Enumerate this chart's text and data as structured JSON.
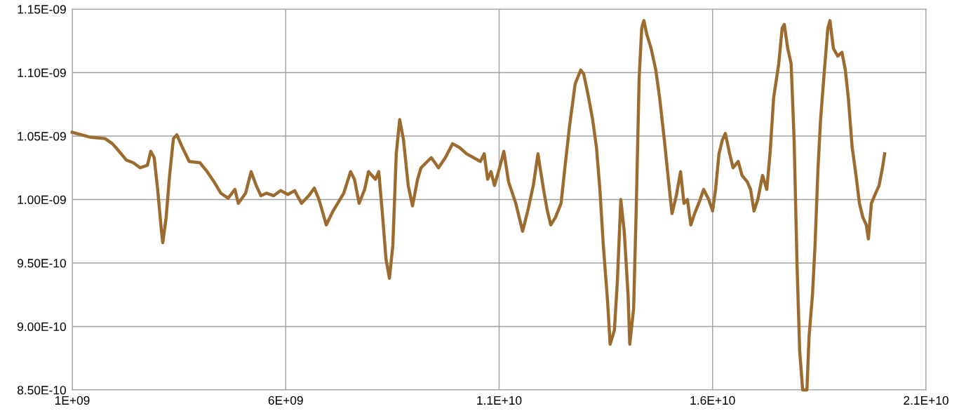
{
  "chart_data": {
    "type": "line",
    "grid": true,
    "marker": "none",
    "line_style": "solid",
    "xlim": [
      1000000000.0,
      21000000000.0
    ],
    "xticks": [
      {
        "value": 1000000000.0,
        "label": "1E+09"
      },
      {
        "value": 6000000000.0,
        "label": "6E+09"
      },
      {
        "value": 11000000000.0,
        "label": "1.1E+10"
      },
      {
        "value": 16000000000.0,
        "label": "1.6E+10"
      },
      {
        "value": 21000000000.0,
        "label": "2.1E+10"
      }
    ],
    "ylim": [
      8.5e-10,
      1.15e-09
    ],
    "yticks": [
      {
        "value": 8.5e-10,
        "label": "8.50E-10"
      },
      {
        "value": 9e-10,
        "label": "9.00E-10"
      },
      {
        "value": 9.5e-10,
        "label": "9.50E-10"
      },
      {
        "value": 1e-09,
        "label": "1.00E-09"
      },
      {
        "value": 1.05e-09,
        "label": "1.05E-09"
      },
      {
        "value": 1.1e-09,
        "label": "1.10E-09"
      },
      {
        "value": 1.15e-09,
        "label": "1.15E-09"
      }
    ],
    "series": [
      {
        "color": "#9c6b30",
        "x": [
          1000000000.0,
          1440000000.0,
          1770000000.0,
          1940000000.0,
          2020000000.0,
          2270000000.0,
          2430000000.0,
          2590000000.0,
          2760000000.0,
          2840000000.0,
          2920000000.0,
          3000000000.0,
          3090000000.0,
          3120000000.0,
          3200000000.0,
          3280000000.0,
          3370000000.0,
          3450000000.0,
          3580000000.0,
          3740000000.0,
          3990000000.0,
          4160000000.0,
          4320000000.0,
          4480000000.0,
          4650000000.0,
          4810000000.0,
          4890000000.0,
          5060000000.0,
          5190000000.0,
          5310000000.0,
          5420000000.0,
          5550000000.0,
          5720000000.0,
          5880000000.0,
          6050000000.0,
          6210000000.0,
          6370000000.0,
          6540000000.0,
          6670000000.0,
          6780000000.0,
          6950000000.0,
          7110000000.0,
          7360000000.0,
          7520000000.0,
          7610000000.0,
          7720000000.0,
          7850000000.0,
          7940000000.0,
          8100000000.0,
          8180000000.0,
          8260000000.0,
          8350000000.0,
          8430000000.0,
          8510000000.0,
          8590000000.0,
          8670000000.0,
          8760000000.0,
          8870000000.0,
          8970000000.0,
          9090000000.0,
          9170000000.0,
          9410000000.0,
          9580000000.0,
          9740000000.0,
          9910000000.0,
          10070000000.0,
          10240000000.0,
          10400000000.0,
          10560000000.0,
          10650000000.0,
          10730000000.0,
          10810000000.0,
          10890000000.0,
          11010000000.0,
          11110000000.0,
          11220000000.0,
          11390000000.0,
          11550000000.0,
          11670000000.0,
          11800000000.0,
          11910000000.0,
          11960000000.0,
          12040000000.0,
          12130000000.0,
          12210000000.0,
          12320000000.0,
          12450000000.0,
          12540000000.0,
          12650000000.0,
          12780000000.0,
          12910000000.0,
          12980000000.0,
          13080000000.0,
          13190000000.0,
          13280000000.0,
          13360000000.0,
          13440000000.0,
          13540000000.0,
          13600000000.0,
          13700000000.0,
          13770000000.0,
          13850000000.0,
          13930000000.0,
          14020000000.0,
          14060000000.0,
          14150000000.0,
          14210000000.0,
          14280000000.0,
          14340000000.0,
          14390000000.0,
          14460000000.0,
          14560000000.0,
          14670000000.0,
          14760000000.0,
          14870000000.0,
          14970000000.0,
          15050000000.0,
          15150000000.0,
          15250000000.0,
          15330000000.0,
          15410000000.0,
          15490000000.0,
          15580000000.0,
          15710000000.0,
          15790000000.0,
          15910000000.0,
          16000000000.0,
          16070000000.0,
          16150000000.0,
          16230000000.0,
          16300000000.0,
          16400000000.0,
          16480000000.0,
          16600000000.0,
          16690000000.0,
          16810000000.0,
          16890000000.0,
          16970000000.0,
          17060000000.0,
          17170000000.0,
          17270000000.0,
          17350000000.0,
          17430000000.0,
          17550000000.0,
          17630000000.0,
          17680000000.0,
          17760000000.0,
          17840000000.0,
          17910000000.0,
          17980000000.0,
          18040000000.0,
          18110000000.0,
          18210000000.0,
          18260000000.0,
          18340000000.0,
          18400000000.0,
          18470000000.0,
          18530000000.0,
          18620000000.0,
          18700000000.0,
          18750000000.0,
          18830000000.0,
          18930000000.0,
          19030000000.0,
          19110000000.0,
          19180000000.0,
          19270000000.0,
          19360000000.0,
          19440000000.0,
          19520000000.0,
          19600000000.0,
          19650000000.0,
          19720000000.0,
          19820000000.0,
          19900000000.0,
          19980000000.0,
          20030000000.0
        ],
        "values": [
          1.053e-09,
          1.049e-09,
          1.048e-09,
          1.044e-09,
          1.041e-09,
          1.031e-09,
          1.029e-09,
          1.025e-09,
          1.027e-09,
          1.038e-09,
          1.033e-09,
          1.008e-09,
          9.75e-10,
          9.66e-10,
          9.86e-10,
          1.019e-09,
          1.048e-09,
          1.051e-09,
          1.041e-09,
          1.03e-09,
          1.029e-09,
          1.022e-09,
          1.014e-09,
          1.005e-09,
          1.001e-09,
          1.008e-09,
          9.97e-10,
          1.005e-09,
          1.022e-09,
          1.011e-09,
          1.003e-09,
          1.005e-09,
          1.003e-09,
          1.007e-09,
          1.004e-09,
          1.007e-09,
          9.97e-10,
          1.003e-09,
          1.009e-09,
          1e-09,
          9.8e-10,
          9.91e-10,
          1.005e-09,
          1.022e-09,
          1.016e-09,
          9.97e-10,
          1.008e-09,
          1.022e-09,
          1.016e-09,
          1.022e-09,
          9.91e-10,
          9.53e-10,
          9.38e-10,
          9.64e-10,
          1.036e-09,
          1.063e-09,
          1.047e-09,
          1.011e-09,
          9.95e-10,
          1.016e-09,
          1.025e-09,
          1.033e-09,
          1.025e-09,
          1.033e-09,
          1.044e-09,
          1.041e-09,
          1.036e-09,
          1.033e-09,
          1.03e-09,
          1.036e-09,
          1.016e-09,
          1.022e-09,
          1.011e-09,
          1.025e-09,
          1.038e-09,
          1.014e-09,
          9.97e-10,
          9.75e-10,
          9.91e-10,
          1.011e-09,
          1.036e-09,
          1.025e-09,
          1.008e-09,
          9.91e-10,
          9.8e-10,
          9.86e-10,
          9.97e-10,
          1.025e-09,
          1.058e-09,
          1.091e-09,
          1.102e-09,
          1.099e-09,
          1.083e-09,
          1.063e-09,
          1.041e-09,
          1.008e-09,
          9.64e-10,
          9.2e-10,
          8.86e-10,
          8.97e-10,
          9.36e-10,
          1e-09,
          9.75e-10,
          9.25e-10,
          8.86e-10,
          9.14e-10,
          9.91e-10,
          1.096e-09,
          1.135e-09,
          1.141e-09,
          1.13e-09,
          1.119e-09,
          1.102e-09,
          1.08e-09,
          1.047e-09,
          1.014e-09,
          9.89e-10,
          1.003e-09,
          1.022e-09,
          9.97e-10,
          1e-09,
          9.8e-10,
          9.89e-10,
          1e-09,
          1.008e-09,
          1e-09,
          9.91e-10,
          1.008e-09,
          1.036e-09,
          1.047e-09,
          1.052e-09,
          1.036e-09,
          1.025e-09,
          1.03e-09,
          1.019e-09,
          1.014e-09,
          1.008e-09,
          9.91e-10,
          1e-09,
          1.019e-09,
          1.008e-09,
          1.038e-09,
          1.08e-09,
          1.107e-09,
          1.135e-09,
          1.138e-09,
          1.119e-09,
          1.107e-09,
          1.047e-09,
          9.47e-10,
          8.81e-10,
          8.5e-10,
          8.5e-10,
          8.92e-10,
          9.25e-10,
          9.64e-10,
          1.025e-09,
          1.063e-09,
          1.102e-09,
          1.135e-09,
          1.141e-09,
          1.119e-09,
          1.113e-09,
          1.116e-09,
          1.102e-09,
          1.08e-09,
          1.041e-09,
          1.019e-09,
          9.97e-10,
          9.86e-10,
          9.8e-10,
          9.69e-10,
          9.97e-10,
          1.005e-09,
          1.011e-09,
          1.025e-09,
          1.036e-09
        ]
      }
    ]
  }
}
